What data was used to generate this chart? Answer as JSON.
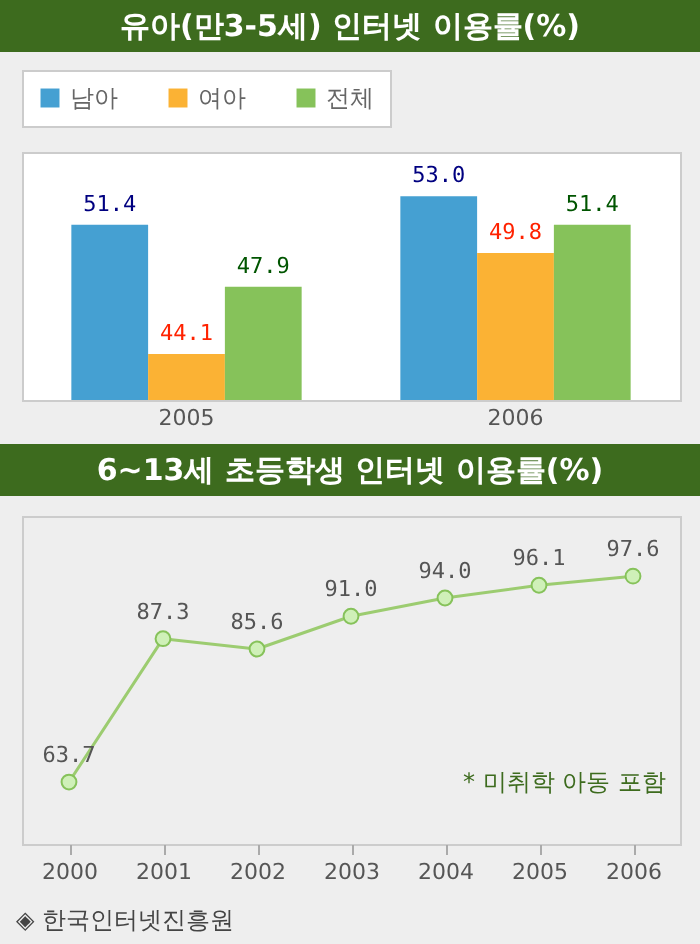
{
  "chart_data": [
    {
      "type": "bar",
      "title": "유아(만3-5세) 인터넷 이용률(%)",
      "categories": [
        "2005",
        "2006"
      ],
      "series": [
        {
          "name": "남아",
          "color": "#45a0d2",
          "values": [
            51.4,
            53.0
          ],
          "value_labels": [
            "51.4",
            "53.0"
          ]
        },
        {
          "name": "여아",
          "color": "#fbb234",
          "values": [
            44.1,
            49.8
          ],
          "value_labels": [
            "44.1",
            "49.8"
          ]
        },
        {
          "name": "전체",
          "color": "#86c25a",
          "values": [
            47.9,
            51.4
          ],
          "value_labels": [
            "47.9",
            "51.4"
          ]
        }
      ],
      "ylim": [
        41.5,
        55.5
      ],
      "tick_labels": "x",
      "legend": "top left"
    },
    {
      "type": "line",
      "title": "6~13세 초등학생 인터넷 이용률(%)",
      "categories": [
        "2000",
        "2001",
        "2002",
        "2003",
        "2004",
        "2005",
        "2006"
      ],
      "series": [
        {
          "color": "#9ccc70",
          "values": [
            63.7,
            87.3,
            85.6,
            91.0,
            94.0,
            96.1,
            97.6
          ],
          "value_labels": [
            "63.7",
            "87.3",
            "85.6",
            "91.0",
            "94.0",
            "96.1",
            "97.6"
          ]
        }
      ],
      "ylim": [
        53.5,
        107.5
      ],
      "tick_labels": "x",
      "marker": "circle",
      "annotations": [
        "* 미취학 아동 포함",
        "◈ 한국인터넷진흥원"
      ]
    }
  ]
}
